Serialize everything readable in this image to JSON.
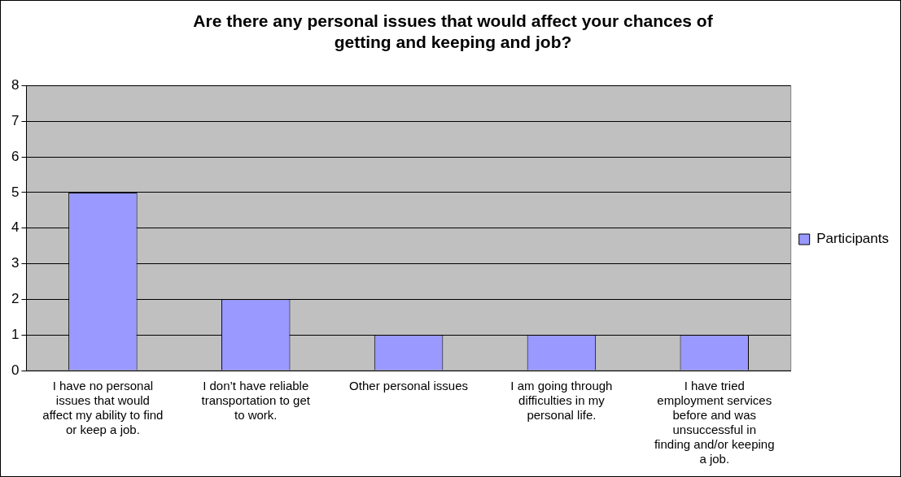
{
  "chart_data": {
    "type": "bar",
    "title": "Are there any personal issues that would affect your chances of getting and keeping and job?",
    "categories": [
      "I have no personal issues that would affect my ability to find or keep a job.",
      "I don’t have reliable transportation to get to work.",
      "Other personal issues",
      "I am going through difficulties in my personal life.",
      "I have tried employment services before and was unsuccessful in finding and/or keeping a job."
    ],
    "series": [
      {
        "name": "Participants",
        "color": "#9999ff",
        "values": [
          5,
          2,
          1,
          1,
          1
        ]
      }
    ],
    "ylim": [
      0,
      8
    ],
    "yticks": [
      0,
      1,
      2,
      3,
      4,
      5,
      6,
      7,
      8
    ],
    "grid": "y",
    "legend": "right"
  }
}
